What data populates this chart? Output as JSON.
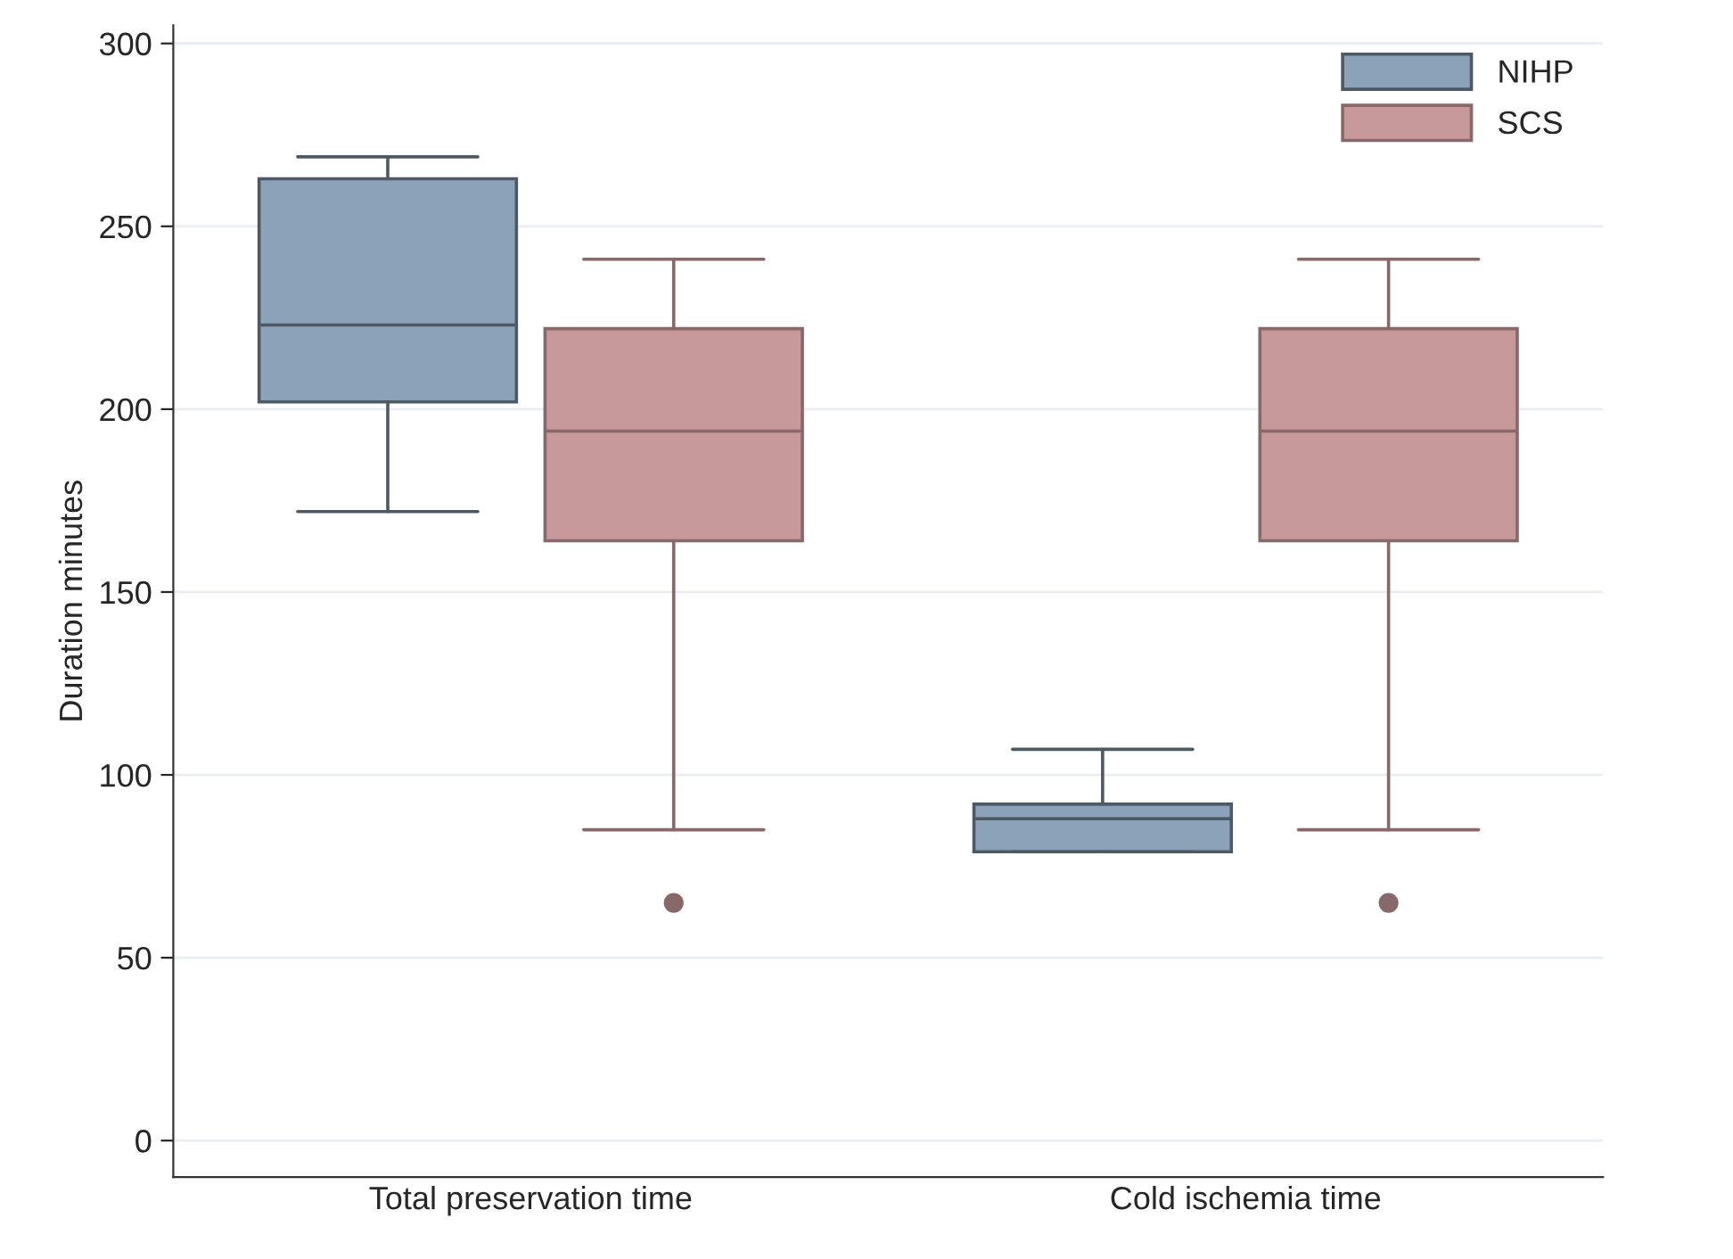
{
  "chart_data": {
    "type": "box",
    "ylabel": "Duration minutes",
    "categories": [
      "Total preservation time",
      "Cold ischemia time"
    ],
    "series": [
      {
        "name": "NIHP",
        "color": "#8ca2b8",
        "boxes": [
          {
            "low": 172,
            "q1": 202,
            "median": 223,
            "q3": 263,
            "high": 269
          },
          {
            "low": 79,
            "q1": 79,
            "median": 88,
            "q3": 92,
            "high": 107
          }
        ]
      },
      {
        "name": "SCS",
        "color": "#c8999b",
        "boxes": [
          {
            "low": 85,
            "q1": 164,
            "median": 194,
            "q3": 222,
            "high": 241,
            "outliers": [
              65
            ]
          },
          {
            "low": 85,
            "q1": 164,
            "median": 194,
            "q3": 222,
            "high": 241,
            "outliers": [
              65
            ]
          }
        ]
      }
    ],
    "ylim": [
      -10,
      305
    ],
    "yticks": [
      0,
      50,
      100,
      150,
      200,
      250,
      300
    ],
    "grid": "y",
    "legend": "top right"
  }
}
